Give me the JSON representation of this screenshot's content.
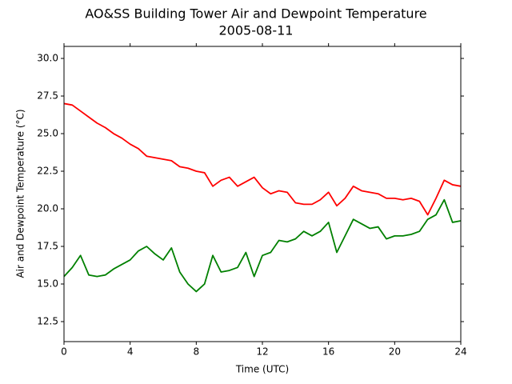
{
  "chart_data": {
    "type": "line",
    "title": "AO&SS Building Tower Air and Dewpoint Temperature",
    "subtitle": "2005-08-11",
    "x_label": "Time (UTC)",
    "y_label": "Air and Dewpoint Temperature (°C)",
    "x": [
      0,
      0.5,
      1,
      1.5,
      2,
      2.5,
      3,
      3.5,
      4,
      4.5,
      5,
      5.5,
      6,
      6.5,
      7,
      7.5,
      8,
      8.5,
      9,
      9.5,
      10,
      10.5,
      11,
      11.5,
      12,
      12.5,
      13,
      13.5,
      14,
      14.5,
      15,
      15.5,
      16,
      16.5,
      17,
      17.5,
      18,
      18.5,
      19,
      19.5,
      20,
      20.5,
      21,
      21.5,
      22,
      22.5,
      23,
      23.5,
      24
    ],
    "series": [
      {
        "color": "#ff0000",
        "values": [
          27.0,
          26.9,
          26.5,
          26.1,
          25.7,
          25.4,
          25.0,
          24.7,
          24.3,
          24.0,
          23.5,
          23.4,
          23.3,
          23.2,
          22.8,
          22.7,
          22.5,
          22.4,
          21.5,
          21.9,
          22.1,
          21.5,
          21.8,
          22.1,
          21.4,
          21.0,
          21.2,
          21.1,
          20.4,
          20.3,
          20.3,
          20.6,
          21.1,
          20.2,
          20.7,
          21.5,
          21.2,
          21.1,
          21.0,
          20.7,
          20.7,
          20.6,
          20.7,
          20.5,
          19.6,
          20.7,
          21.9,
          21.6,
          21.5
        ]
      },
      {
        "color": "#008000",
        "values": [
          15.5,
          16.1,
          16.9,
          15.6,
          15.5,
          15.6,
          16.0,
          16.3,
          16.6,
          17.2,
          17.5,
          17.0,
          16.6,
          17.4,
          15.8,
          15.0,
          14.5,
          15.0,
          16.9,
          15.8,
          15.9,
          16.1,
          17.1,
          15.5,
          16.9,
          17.1,
          17.9,
          17.8,
          18.0,
          18.5,
          18.2,
          18.5,
          19.1,
          17.1,
          18.2,
          19.3,
          19.0,
          18.7,
          18.8,
          18.0,
          18.2,
          18.2,
          18.3,
          18.5,
          19.3,
          19.6,
          20.6,
          19.1,
          19.2
        ]
      }
    ],
    "xlim": [
      0,
      24
    ],
    "xticks": [
      0,
      4,
      8,
      12,
      16,
      20,
      24
    ],
    "ylim": [
      11.17,
      30.8
    ],
    "yticks": [
      12.5,
      {
        "value": 15,
        "label": "15.0"
      },
      17.5,
      {
        "value": 20,
        "label": "20.0"
      },
      22.5,
      {
        "value": 25,
        "label": "25.0"
      },
      27.5,
      {
        "value": 30,
        "label": "30.0"
      }
    ]
  }
}
